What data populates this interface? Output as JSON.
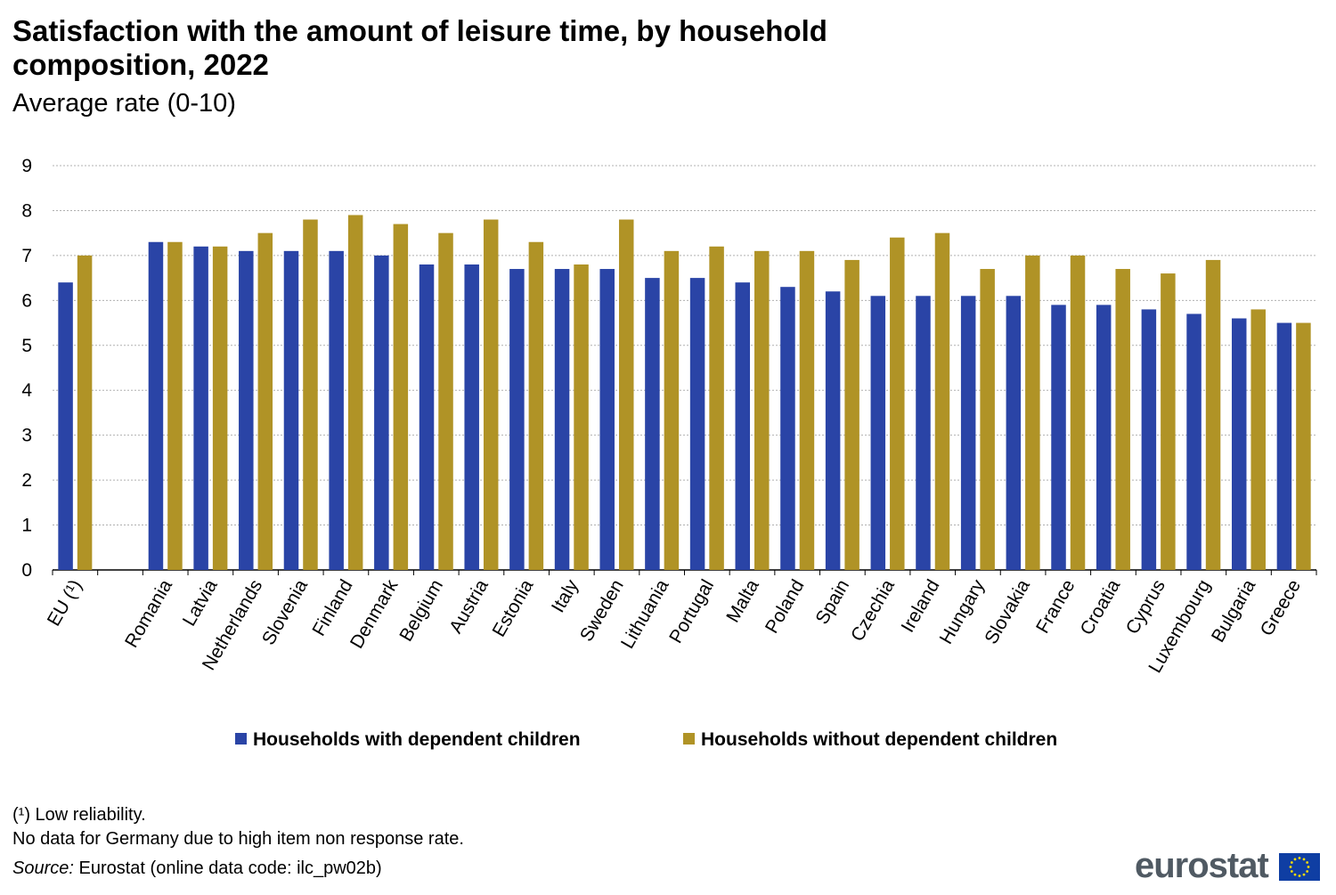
{
  "title": "Satisfaction with the amount of leisure time, by household composition, 2022",
  "subtitle": "Average rate (0-10)",
  "chart_data": {
    "type": "bar",
    "categories": [
      "EU (¹)",
      "",
      "Romania",
      "Latvia",
      "Netherlands",
      "Slovenia",
      "Finland",
      "Denmark",
      "Belgium",
      "Austria",
      "Estonia",
      "Italy",
      "Sweden",
      "Lithuania",
      "Portugal",
      "Malta",
      "Poland",
      "Spain",
      "Czechia",
      "Ireland",
      "Hungary",
      "Slovakia",
      "France",
      "Croatia",
      "Cyprus",
      "Luxembourg",
      "Bulgaria",
      "Greece"
    ],
    "series": [
      {
        "name": "Households with dependent children",
        "color": "#2a44a6",
        "values": [
          6.4,
          null,
          7.3,
          7.2,
          7.1,
          7.1,
          7.1,
          7.0,
          6.8,
          6.8,
          6.7,
          6.7,
          6.7,
          6.5,
          6.5,
          6.4,
          6.3,
          6.2,
          6.1,
          6.1,
          6.1,
          6.1,
          5.9,
          5.9,
          5.8,
          5.7,
          5.6,
          5.5
        ]
      },
      {
        "name": "Households without dependent children",
        "color": "#b09326",
        "values": [
          7.0,
          null,
          7.3,
          7.2,
          7.5,
          7.8,
          7.9,
          7.7,
          7.5,
          7.8,
          7.3,
          6.8,
          7.8,
          7.1,
          7.2,
          7.1,
          7.1,
          6.9,
          7.4,
          7.5,
          6.7,
          7.0,
          7.0,
          6.7,
          6.6,
          6.9,
          5.8,
          5.5
        ]
      }
    ],
    "yticks": [
      0,
      1,
      2,
      3,
      4,
      5,
      6,
      7,
      8,
      9
    ],
    "ylim": [
      0,
      9
    ],
    "grid": true,
    "legend_position": "bottom"
  },
  "footnotes": {
    "note1": "(¹) Low reliability.",
    "note2": "No data for Germany due to high item non response rate.",
    "source_label": "Source:",
    "source_text": " Eurostat (online data code: ilc_pw02b)"
  },
  "logo": {
    "text": "eurostat",
    "flag_color": "#0f3ea3",
    "star_color": "#ffdd00"
  }
}
